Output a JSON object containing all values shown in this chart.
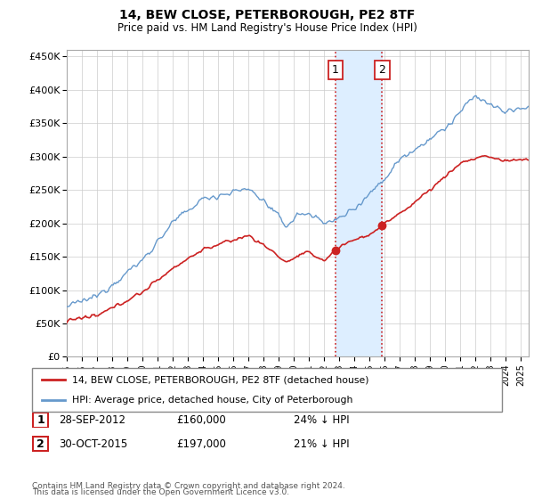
{
  "title": "14, BEW CLOSE, PETERBOROUGH, PE2 8TF",
  "subtitle": "Price paid vs. HM Land Registry's House Price Index (HPI)",
  "ytick_labels": [
    "£0",
    "£50K",
    "£100K",
    "£150K",
    "£200K",
    "£250K",
    "£300K",
    "£350K",
    "£400K",
    "£450K"
  ],
  "yticks": [
    0,
    50000,
    100000,
    150000,
    200000,
    250000,
    300000,
    350000,
    400000,
    450000
  ],
  "hpi_color": "#6699cc",
  "price_color": "#cc2222",
  "sale1_x": 2012.75,
  "sale1_y": 160000,
  "sale2_x": 2015.83,
  "sale2_y": 197000,
  "shade_color": "#ddeeff",
  "vline_color": "#cc2222",
  "legend_line1": "14, BEW CLOSE, PETERBOROUGH, PE2 8TF (detached house)",
  "legend_line2": "HPI: Average price, detached house, City of Peterborough",
  "table_row1_num": "1",
  "table_row1_date": "28-SEP-2012",
  "table_row1_price": "£160,000",
  "table_row1_hpi": "24% ↓ HPI",
  "table_row2_num": "2",
  "table_row2_date": "30-OCT-2015",
  "table_row2_price": "£197,000",
  "table_row2_hpi": "21% ↓ HPI",
  "footnote1": "Contains HM Land Registry data © Crown copyright and database right 2024.",
  "footnote2": "This data is licensed under the Open Government Licence v3.0.",
  "xmin": 1995,
  "xmax": 2025.5,
  "ylim_max": 460000
}
